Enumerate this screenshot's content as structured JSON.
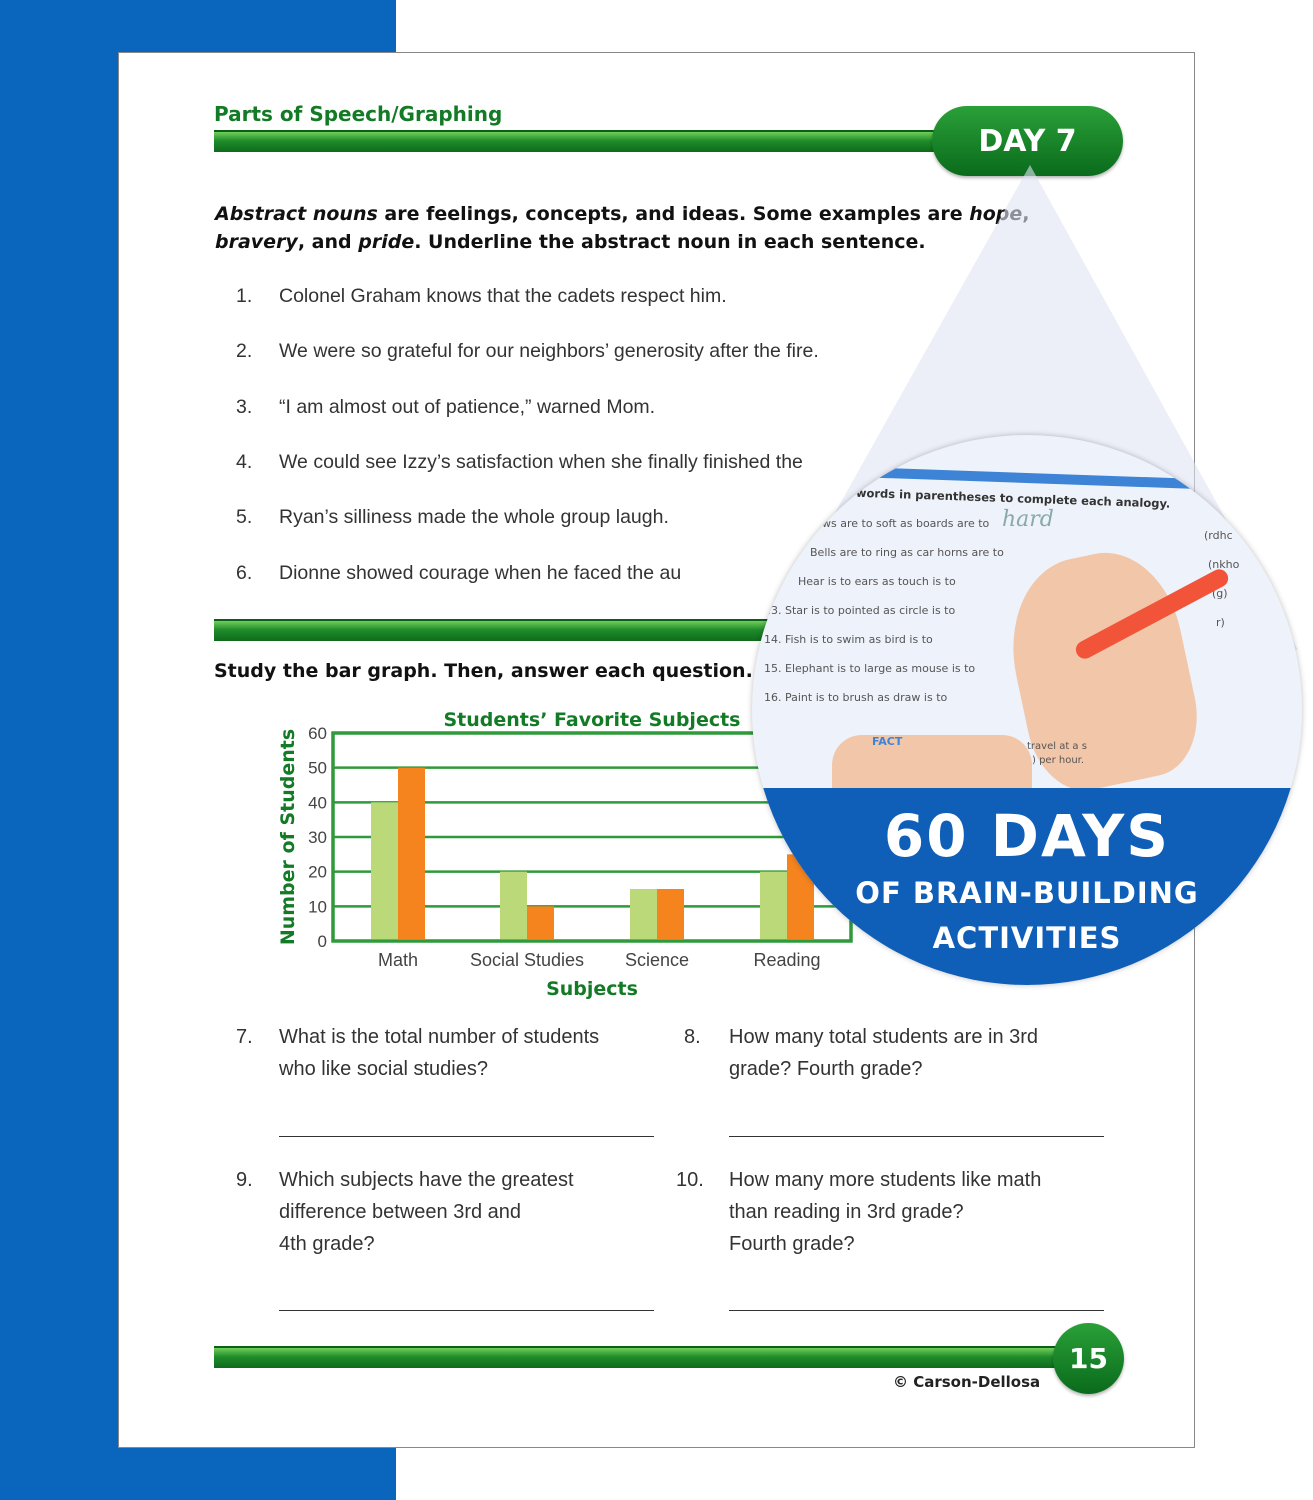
{
  "header": {
    "section": "Parts of Speech/Graphing",
    "day": "DAY 7"
  },
  "instructions1": {
    "a": "Abstract nouns",
    "b": " are feelings, concepts, and ideas. Some examples are ",
    "c": "hope",
    "d": ",",
    "e": "bravery",
    "f": ", and ",
    "g": "pride",
    "h": ". Underline the abstract noun in each sentence."
  },
  "sentences": [
    {
      "n": "1.",
      "t": "Colonel Graham knows that the cadets respect him."
    },
    {
      "n": "2.",
      "t": "We were so grateful for our neighbors’ generosity after the fire."
    },
    {
      "n": "3.",
      "t": "“I am almost out of patience,” warned Mom."
    },
    {
      "n": "4.",
      "t": "We could see Izzy’s satisfaction when she finally finished the"
    },
    {
      "n": "5.",
      "t": "Ryan’s silliness made the whole group laugh."
    },
    {
      "n": "6.",
      "t": "Dionne showed courage when he faced the au"
    }
  ],
  "instructions2": "Study the bar graph. Then, answer each question.",
  "chart_data": {
    "type": "bar",
    "title": "Students’ Favorite Subjects",
    "xlabel": "Subjects",
    "ylabel": "Number of Students",
    "categories": [
      "Math",
      "Social Studies",
      "Science",
      "Reading"
    ],
    "series": [
      {
        "color": "#bcd97a",
        "values": [
          40,
          20,
          15,
          20
        ]
      },
      {
        "color": "#f5841f",
        "values": [
          50,
          10,
          15,
          25
        ]
      }
    ],
    "ylim": [
      0,
      60
    ],
    "yticks": [
      "0",
      "10",
      "20",
      "30",
      "40",
      "50",
      "60"
    ],
    "grid": true
  },
  "questions": [
    {
      "n": "7.",
      "lines": [
        "What is the total number of students",
        "who like social studies?"
      ]
    },
    {
      "n": "8.",
      "lines": [
        "How many total students are in 3rd",
        "grade? Fourth grade?"
      ]
    },
    {
      "n": "9.",
      "lines": [
        "Which subjects have the greatest",
        "difference between 3rd and",
        "4th grade?"
      ]
    },
    {
      "n": "10.",
      "lines": [
        "How many more students like math",
        "than reading in 3rd grade?",
        "Fourth grade?"
      ]
    }
  ],
  "footer": {
    "copyright": "© Carson-Dellosa",
    "page": "15"
  },
  "promo": {
    "line1": "60 DAYS",
    "line2": "OF BRAIN-BUILDING",
    "line3": "ACTIVITIES",
    "inset": {
      "heading": "e words in parentheses to complete each analogy.",
      "rows": [
        "ws are to soft as boards are to",
        "Bells are to ring as car horns are to",
        "Hear is to ears as touch is to",
        "13.  Star is to pointed as circle is to",
        "14.  Fish is to swim as bird is to",
        "15.  Elephant is to large as mouse is to",
        "16.  Paint is to brush as draw is to"
      ],
      "handwriting": "hard",
      "hints": [
        "(rdhc",
        "(nkho",
        "(g)",
        "r)"
      ],
      "fact": "FACT",
      "fact_text": "travel at a s",
      "fact_text2": ") per hour."
    }
  },
  "colors": {
    "green": "#137a26",
    "blue": "#0a66bd",
    "bar3": "#bcd97a",
    "bar4": "#f5841f"
  }
}
